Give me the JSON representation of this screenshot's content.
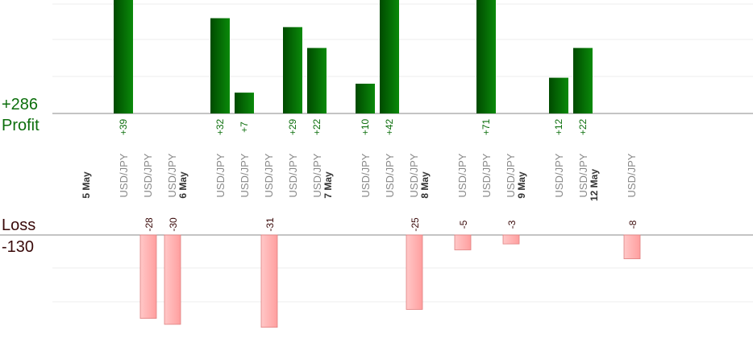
{
  "summary": {
    "profit_total": "+286",
    "profit_label": "Profit",
    "loss_label": "Loss",
    "loss_total": "-130"
  },
  "colors": {
    "profit_bar_dark": "#004a00",
    "profit_bar_light": "#0a8a0a",
    "profit_text": "#0b6e0b",
    "loss_bar": "#ffb3b3",
    "loss_bar_edge": "#e06a6a",
    "loss_text": "#3a0a0a",
    "date_text": "#333333",
    "pair_text": "#888888"
  },
  "chart_data": {
    "type": "bar",
    "trades": [
      {
        "date_label": "5 May",
        "pair": "USD/JPY",
        "value": 39
      },
      {
        "pair": "USD/JPY",
        "value": -28
      },
      {
        "pair": "USD/JPY",
        "value": -30
      },
      {
        "date_label": "6 May",
        "pair": "USD/JPY",
        "value": 32
      },
      {
        "pair": "USD/JPY",
        "value": 7
      },
      {
        "pair": "USD/JPY",
        "value": -31
      },
      {
        "pair": "USD/JPY",
        "value": 29
      },
      {
        "pair": "USD/JPY",
        "value": 22
      },
      {
        "date_label": "7 May",
        "pair": "USD/JPY",
        "value": 10
      },
      {
        "pair": "USD/JPY",
        "value": 42
      },
      {
        "pair": "USD/JPY",
        "value": -25
      },
      {
        "date_label": "8 May",
        "pair": "USD/JPY",
        "value": -5
      },
      {
        "pair": "USD/JPY",
        "value": 71
      },
      {
        "pair": "USD/JPY",
        "value": -3
      },
      {
        "date_label": "9 May",
        "pair": "USD/JPY",
        "value": 12
      },
      {
        "pair": "USD/JPY",
        "value": 22
      },
      {
        "date_label": "12 May",
        "pair": "USD/JPY",
        "value": -8
      }
    ],
    "profit_value_labels": [
      "+39",
      "+32",
      "+7",
      "+29",
      "+22",
      "+10",
      "+42",
      "+71",
      "+12",
      "+22"
    ],
    "loss_value_labels": [
      "-28",
      "-30",
      "-31",
      "-25",
      "-5",
      "-3",
      "-8"
    ]
  }
}
